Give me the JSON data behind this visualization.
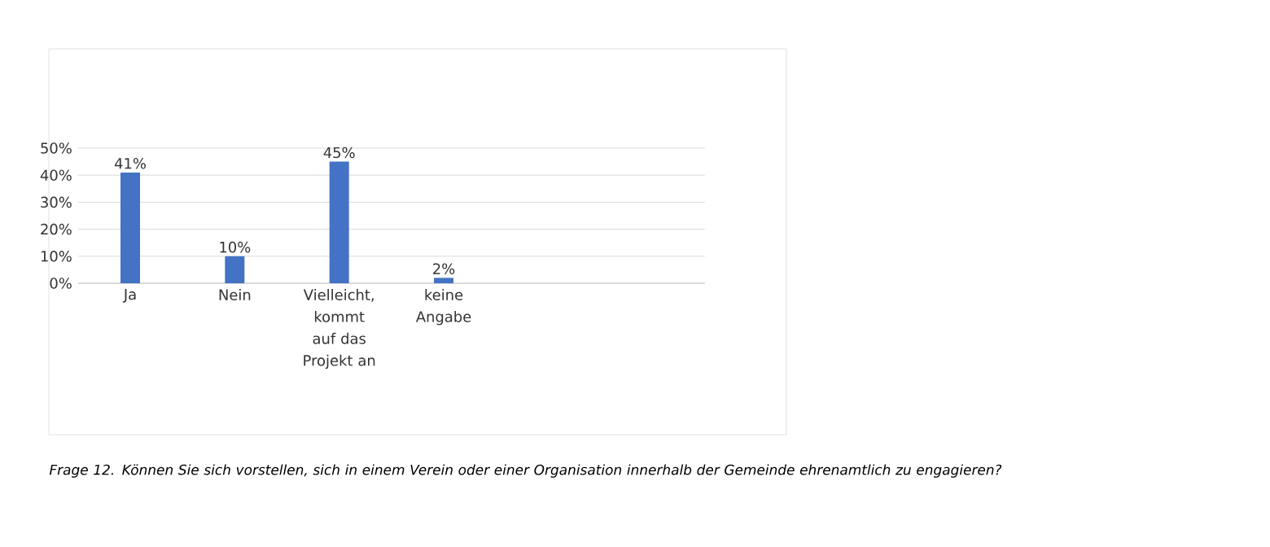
{
  "chart_data": {
    "type": "bar",
    "categories": [
      "Ja",
      "Nein",
      "Vielleicht, kommt auf das Projekt an",
      "keine Angabe",
      null,
      null
    ],
    "values": [
      41,
      10,
      45,
      2,
      null,
      null
    ],
    "value_labels": [
      "41%",
      "10%",
      "45%",
      "2%",
      null,
      null
    ],
    "color": "#4472c4",
    "ylim": [
      0,
      50
    ],
    "yticks": [
      {
        "value": 0,
        "label": "0%"
      },
      {
        "value": 10,
        "label": "10%"
      },
      {
        "value": 20,
        "label": "20%"
      },
      {
        "value": 30,
        "label": "30%"
      },
      {
        "value": 40,
        "label": "40%"
      },
      {
        "value": 50,
        "label": "50%"
      }
    ],
    "grid": "y",
    "annotations": [
      "*Frage 12. Können Sie sich vorstellen, sich in einem Verein oder einer Organisation innerhalb der Gemeinde ehrenamtlich zu engagieren?*"
    ]
  }
}
